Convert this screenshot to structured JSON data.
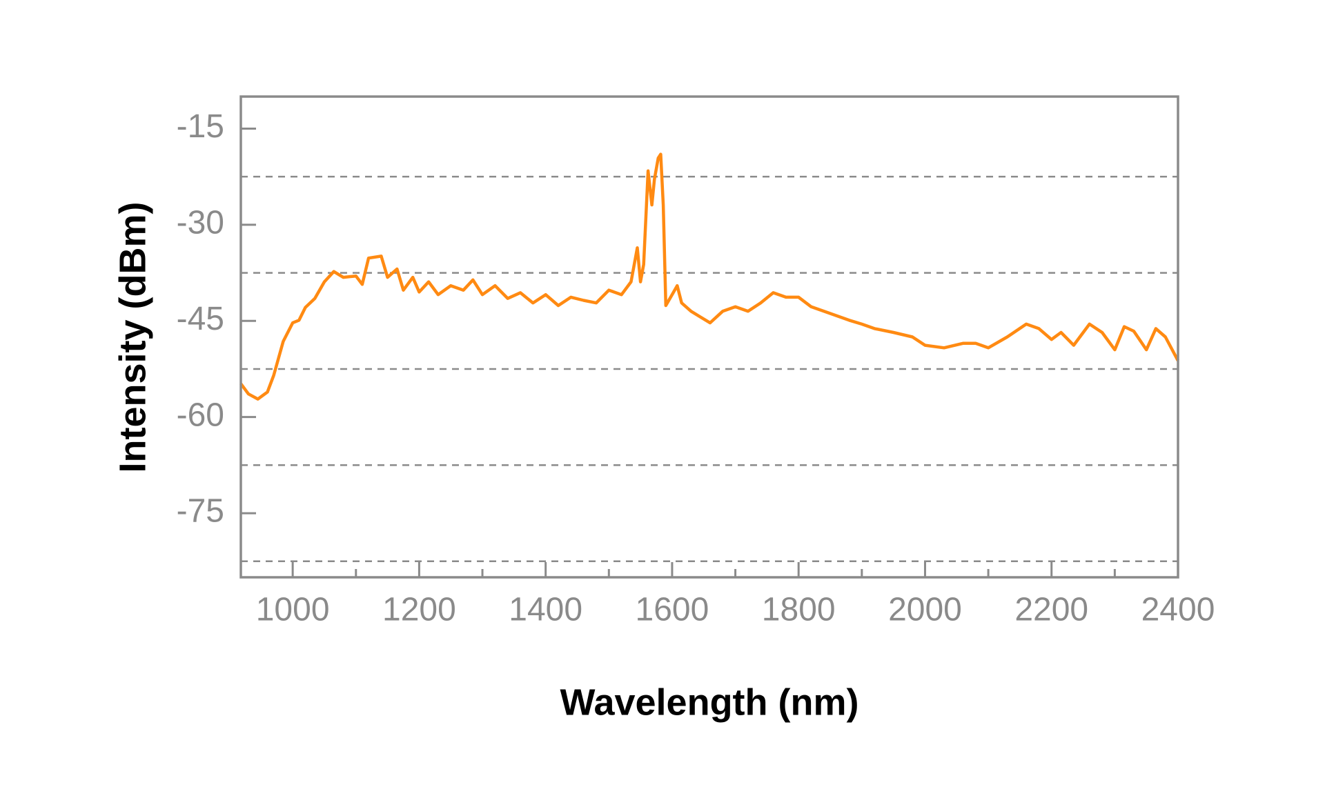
{
  "chart_data": {
    "type": "line",
    "x_label": "Wavelength (nm)",
    "y_label": "Intensity (dBm)",
    "x": [
      918,
      930,
      945,
      960,
      970,
      985,
      1000,
      1010,
      1020,
      1035,
      1050,
      1065,
      1080,
      1100,
      1110,
      1120,
      1140,
      1150,
      1165,
      1175,
      1190,
      1200,
      1215,
      1230,
      1250,
      1270,
      1285,
      1300,
      1320,
      1340,
      1360,
      1380,
      1400,
      1420,
      1440,
      1460,
      1480,
      1500,
      1520,
      1535,
      1545,
      1550,
      1555,
      1562,
      1568,
      1572,
      1578,
      1582,
      1586,
      1590,
      1600,
      1608,
      1615,
      1630,
      1660,
      1680,
      1700,
      1720,
      1740,
      1760,
      1780,
      1800,
      1820,
      1840,
      1860,
      1880,
      1900,
      1920,
      1950,
      1980,
      2000,
      2030,
      2060,
      2080,
      2100,
      2130,
      2160,
      2180,
      2200,
      2215,
      2235,
      2260,
      2280,
      2300,
      2315,
      2330,
      2350,
      2365,
      2380,
      2400
    ],
    "series": [
      {
        "name": "Intensity",
        "color": "#ff8a12",
        "values": [
          -54.8,
          -56.4,
          -57.2,
          -56.1,
          -53.5,
          -48.2,
          -45.3,
          -44.9,
          -42.9,
          -41.5,
          -38.9,
          -37.3,
          -38.2,
          -38.0,
          -39.3,
          -35.2,
          -34.9,
          -38.2,
          -36.9,
          -40.2,
          -38.2,
          -40.5,
          -38.9,
          -40.9,
          -39.5,
          -40.2,
          -38.6,
          -40.9,
          -39.5,
          -41.5,
          -40.6,
          -42.2,
          -40.9,
          -42.6,
          -41.3,
          -41.8,
          -42.2,
          -40.2,
          -40.9,
          -38.9,
          -33.6,
          -38.9,
          -36.2,
          -21.6,
          -26.9,
          -22.9,
          -19.6,
          -19.0,
          -26.9,
          -42.6,
          -40.9,
          -39.5,
          -42.2,
          -43.5,
          -45.3,
          -43.5,
          -42.8,
          -43.5,
          -42.2,
          -40.6,
          -41.3,
          -41.3,
          -42.8,
          -43.5,
          -44.2,
          -44.9,
          -45.5,
          -46.2,
          -46.8,
          -47.5,
          -48.8,
          -49.2,
          -48.5,
          -48.5,
          -49.2,
          -47.5,
          -45.5,
          -46.2,
          -47.9,
          -46.8,
          -48.8,
          -45.5,
          -46.8,
          -49.5,
          -45.9,
          -46.6,
          -49.5,
          -46.2,
          -47.5,
          -51.2
        ]
      }
    ],
    "xlim": [
      918,
      2400
    ],
    "xticks": [
      1000,
      1200,
      1400,
      1600,
      1800,
      2000,
      2200,
      2400
    ],
    "xminorticks": [
      1100,
      1300,
      1500,
      1700,
      1900,
      2100,
      2300
    ],
    "ylim": [
      -85,
      -10
    ],
    "yticks": [
      -15,
      -30,
      -45,
      -60,
      -75
    ],
    "ygrid": [
      -22.5,
      -37.5,
      -52.5,
      -67.5,
      -82.5
    ]
  }
}
